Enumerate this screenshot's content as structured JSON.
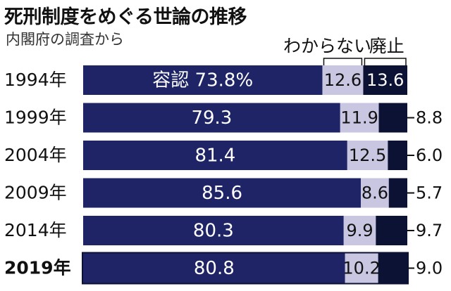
{
  "title": "死刑制度をめぐる世論の推移",
  "subtitle": "内閣府の調査から",
  "colors": {
    "support": "#1e2466",
    "unknown": "#c9c6e2",
    "abolish": "#0c1233",
    "text_light": "#ffffff",
    "text_dark": "#111111"
  },
  "chart_data": {
    "type": "bar",
    "orientation": "horizontal",
    "stacked": true,
    "normalized_to_100": true,
    "categories": [
      "1994年",
      "1999年",
      "2004年",
      "2009年",
      "2014年",
      "2019年"
    ],
    "highlight_category": "2019年",
    "series": [
      {
        "name": "容認",
        "values": [
          73.8,
          79.3,
          81.4,
          85.6,
          80.3,
          80.8
        ]
      },
      {
        "name": "わからない",
        "values": [
          12.6,
          11.9,
          12.5,
          8.6,
          9.9,
          10.2
        ]
      },
      {
        "name": "廃止",
        "values": [
          13.6,
          8.8,
          6.0,
          5.7,
          9.7,
          9.0
        ]
      }
    ],
    "first_value_label": "容認 73.8%",
    "header_labels": [
      "わからない",
      "廃止"
    ],
    "abolish_labels_outside_from_index": 1,
    "units": "%"
  }
}
